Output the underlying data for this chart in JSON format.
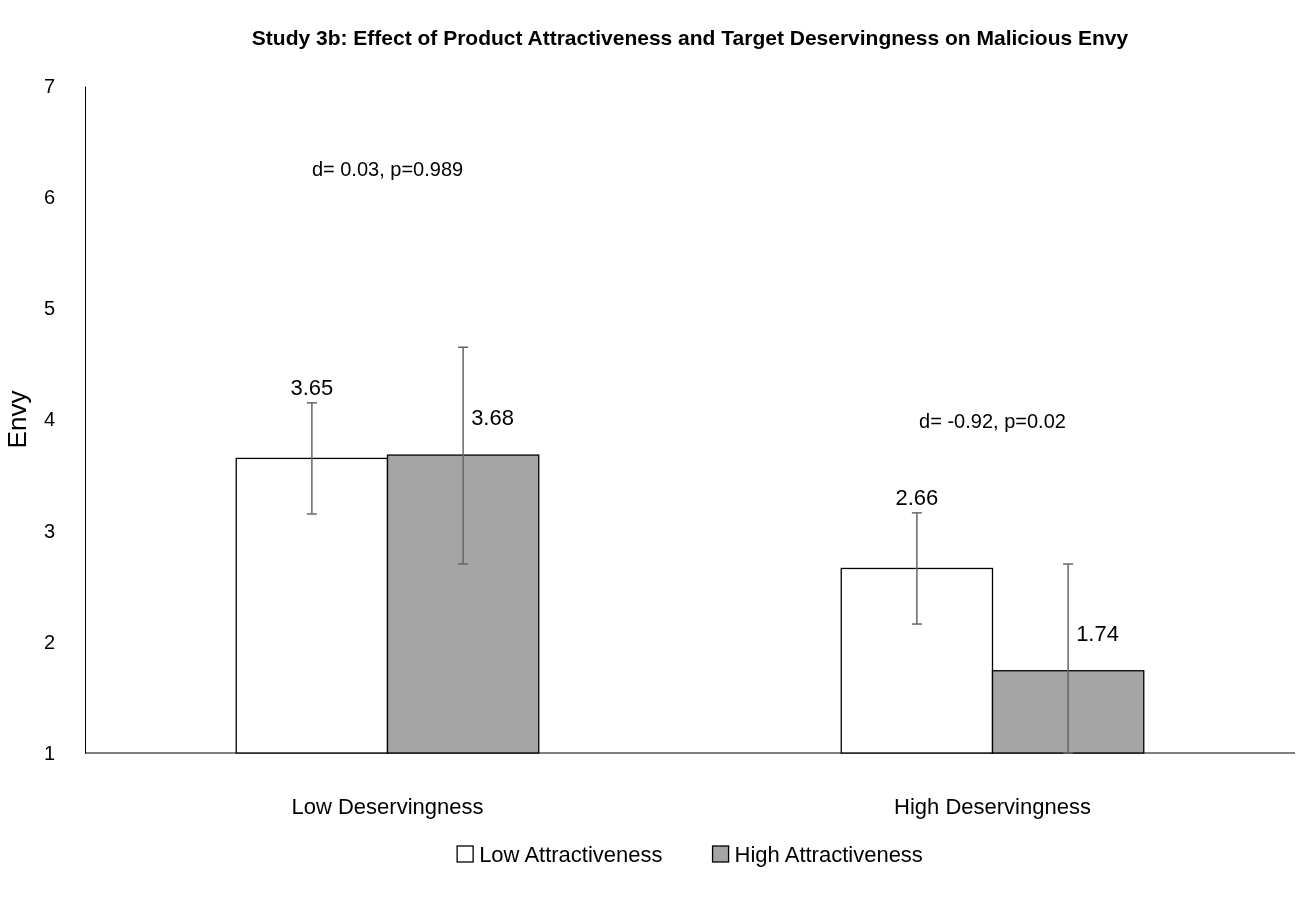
{
  "chart_data": {
    "type": "bar",
    "title": "Study 3b: Effect of Product Attractiveness and Target Deservingness on Malicious Envy",
    "ylabel": "Envy",
    "categories": [
      "Low Deservingness",
      "High Deservingness"
    ],
    "series": [
      {
        "name": "Low Attractiveness",
        "color": "#ffffff",
        "values": [
          3.65,
          2.66
        ],
        "errors": [
          0.5,
          0.5
        ]
      },
      {
        "name": "High Attractiveness",
        "color": "#a5a5a5",
        "values": [
          3.68,
          1.74
        ],
        "errors": [
          [
            2.7,
            4.65
          ],
          [
            1,
            2.7
          ]
        ]
      }
    ],
    "ylim": [
      1,
      7
    ],
    "yticks": [
      1,
      2,
      3,
      4,
      5,
      6,
      7
    ],
    "grid": false,
    "legend": "bottom",
    "data_labels": true,
    "annotations": [
      "d= 0.03, p=0.989",
      "d= -0.92, p=0.02"
    ]
  }
}
